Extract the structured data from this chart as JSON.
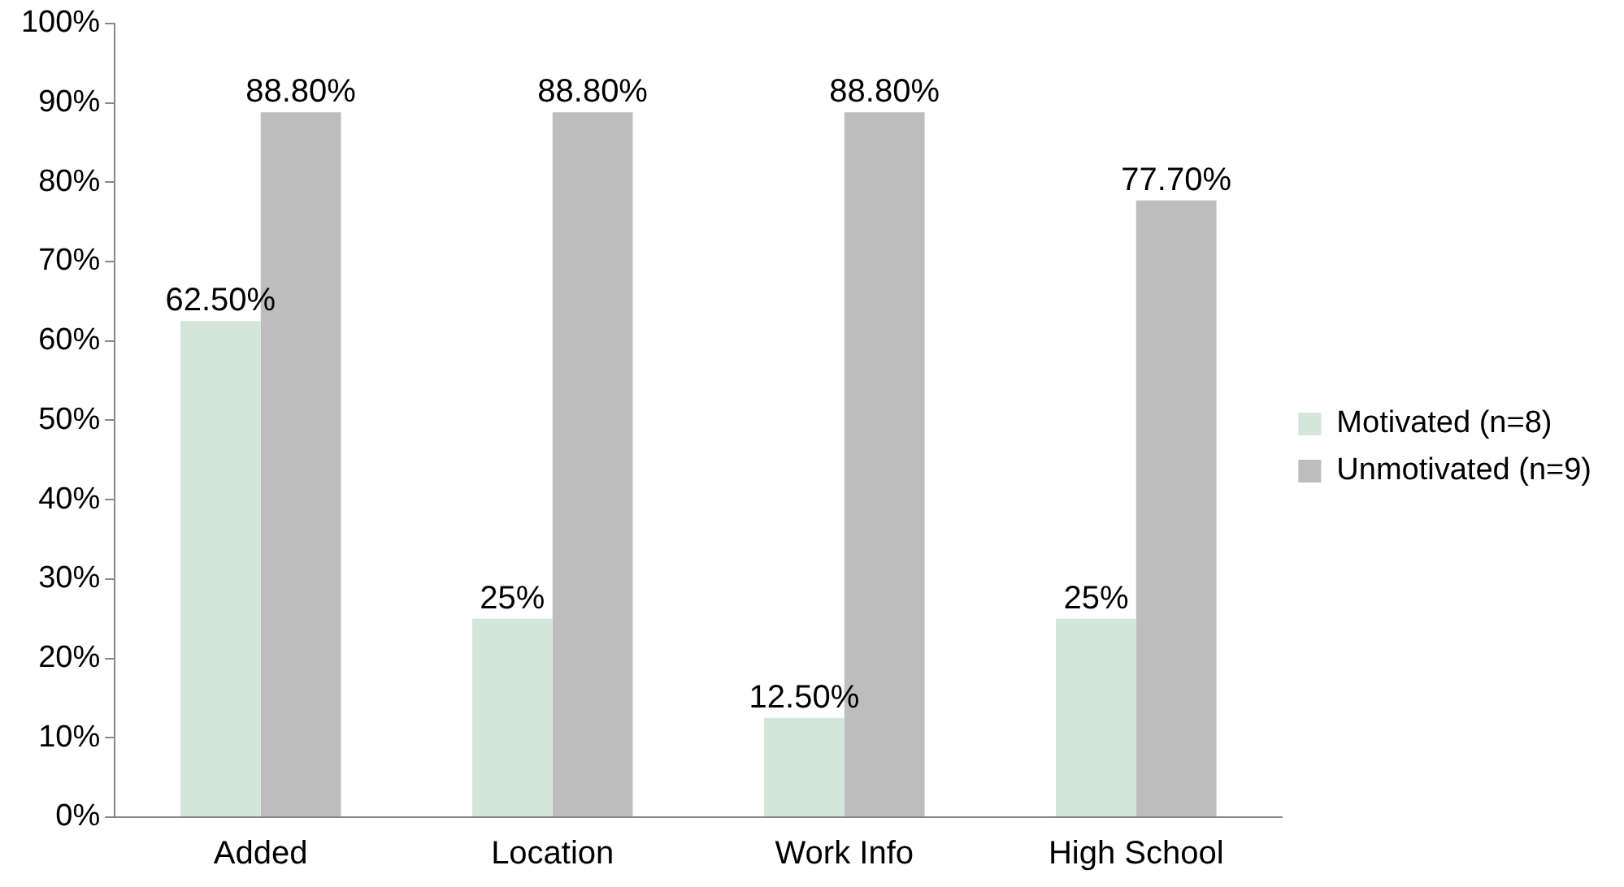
{
  "chart_data": {
    "type": "bar",
    "categories": [
      "Added",
      "Location",
      "Work Info",
      "High School"
    ],
    "series": [
      {
        "name": "Motivated (n=8)",
        "color": "#d3e6d9",
        "values": [
          62.5,
          25,
          12.5,
          25
        ],
        "value_labels": [
          "62.50%",
          "25%",
          "12.50%",
          "25%"
        ]
      },
      {
        "name": "Unmotivated (n=9)",
        "color": "#bdbdbd",
        "values": [
          88.8,
          88.8,
          88.8,
          77.7
        ],
        "value_labels": [
          "88.80%",
          "88.80%",
          "88.80%",
          "77.70%"
        ]
      }
    ],
    "ylim": [
      0,
      100
    ],
    "yticks": [
      {
        "value": 0,
        "label": "0%"
      },
      {
        "value": 10,
        "label": "10%"
      },
      {
        "value": 20,
        "label": "20%"
      },
      {
        "value": 30,
        "label": "30%"
      },
      {
        "value": 40,
        "label": "40%"
      },
      {
        "value": 50,
        "label": "50%"
      },
      {
        "value": 60,
        "label": "60%"
      },
      {
        "value": 70,
        "label": "70%"
      },
      {
        "value": 80,
        "label": "80%"
      },
      {
        "value": 90,
        "label": "90%"
      },
      {
        "value": 100,
        "label": "100%"
      }
    ],
    "grid": false,
    "legend": "right"
  }
}
